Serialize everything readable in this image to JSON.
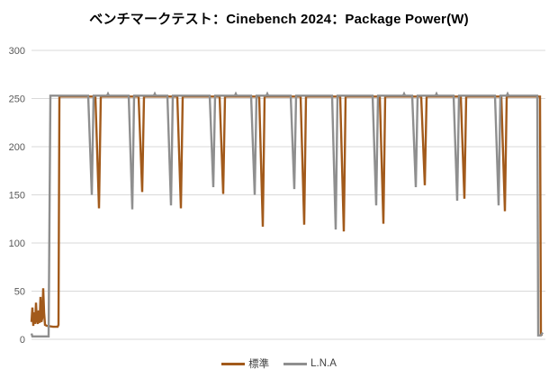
{
  "chart_data": {
    "type": "line",
    "title": "ベンチマークテスト：Cinebench 2024：Package Power(W)",
    "xlabel": "",
    "ylabel": "",
    "ylim": [
      0,
      300
    ],
    "yticks": [
      0,
      50,
      100,
      150,
      200,
      250,
      300
    ],
    "x_range": [
      0,
      571
    ],
    "x_tick_labels_shown": false,
    "grid": true,
    "legend_position": "bottom",
    "plot_note": "Two power-draw traces idle near 0-50W, jump to a ~252W plateau, show 11 periodic V-shaped dips between benchmark runs, then fall back to ~5W at the end",
    "series": [
      {
        "name": "標準",
        "color": "#A25A1B",
        "plateau_w": 252,
        "dip_minima_w": [
          136,
          153,
          136,
          151,
          117,
          119,
          112,
          120,
          160,
          146,
          133
        ],
        "points": [
          [
            0,
            18
          ],
          [
            1,
            33
          ],
          [
            2,
            14
          ],
          [
            3,
            28
          ],
          [
            4,
            16
          ],
          [
            5,
            38
          ],
          [
            6,
            20
          ],
          [
            7,
            16
          ],
          [
            8,
            30
          ],
          [
            9,
            17
          ],
          [
            10,
            44
          ],
          [
            11,
            18
          ],
          [
            12,
            22
          ],
          [
            13,
            53
          ],
          [
            14,
            28
          ],
          [
            15,
            15
          ],
          [
            17,
            14
          ],
          [
            24,
            13
          ],
          [
            29,
            13
          ],
          [
            30,
            15
          ],
          [
            31,
            252
          ],
          [
            71,
            252
          ],
          [
            75,
            136
          ],
          [
            77,
            252
          ],
          [
            119,
            252
          ],
          [
            123,
            153
          ],
          [
            125,
            252
          ],
          [
            162,
            252
          ],
          [
            166,
            136
          ],
          [
            168,
            252
          ],
          [
            209,
            252
          ],
          [
            213,
            151
          ],
          [
            215,
            252
          ],
          [
            253,
            252
          ],
          [
            257,
            117
          ],
          [
            259,
            252
          ],
          [
            299,
            252
          ],
          [
            303,
            119
          ],
          [
            305,
            252
          ],
          [
            343,
            252
          ],
          [
            347,
            112
          ],
          [
            349,
            252
          ],
          [
            387,
            252
          ],
          [
            391,
            120
          ],
          [
            393,
            252
          ],
          [
            433,
            252
          ],
          [
            437,
            160
          ],
          [
            439,
            252
          ],
          [
            477,
            252
          ],
          [
            481,
            146
          ],
          [
            483,
            252
          ],
          [
            522,
            252
          ],
          [
            526,
            133
          ],
          [
            528,
            252
          ],
          [
            565,
            252
          ],
          [
            566,
            5
          ],
          [
            568,
            5
          ]
        ]
      },
      {
        "name": "L.N.A",
        "color": "#8F8F8F",
        "plateau_w": 253,
        "dip_minima_w": [
          150,
          135,
          139,
          158,
          150,
          156,
          114,
          139,
          158,
          144,
          139
        ],
        "points": [
          [
            0,
            6
          ],
          [
            1,
            3
          ],
          [
            19,
            3
          ],
          [
            21,
            253
          ],
          [
            63,
            253
          ],
          [
            67,
            150
          ],
          [
            69,
            253
          ],
          [
            84,
            253
          ],
          [
            85,
            255
          ],
          [
            86,
            253
          ],
          [
            108,
            253
          ],
          [
            112,
            135
          ],
          [
            114,
            253
          ],
          [
            136,
            253
          ],
          [
            137,
            255
          ],
          [
            138,
            253
          ],
          [
            151,
            253
          ],
          [
            155,
            139
          ],
          [
            157,
            253
          ],
          [
            198,
            253
          ],
          [
            202,
            158
          ],
          [
            204,
            253
          ],
          [
            226,
            253
          ],
          [
            227,
            255
          ],
          [
            228,
            253
          ],
          [
            244,
            253
          ],
          [
            248,
            150
          ],
          [
            250,
            253
          ],
          [
            261,
            253
          ],
          [
            262,
            255
          ],
          [
            263,
            253
          ],
          [
            288,
            253
          ],
          [
            292,
            156
          ],
          [
            294,
            253
          ],
          [
            334,
            253
          ],
          [
            338,
            114
          ],
          [
            340,
            253
          ],
          [
            379,
            253
          ],
          [
            383,
            139
          ],
          [
            385,
            253
          ],
          [
            413,
            253
          ],
          [
            414,
            255
          ],
          [
            415,
            253
          ],
          [
            423,
            253
          ],
          [
            427,
            158
          ],
          [
            429,
            253
          ],
          [
            449,
            253
          ],
          [
            450,
            255
          ],
          [
            451,
            253
          ],
          [
            469,
            253
          ],
          [
            473,
            144
          ],
          [
            475,
            253
          ],
          [
            515,
            253
          ],
          [
            519,
            139
          ],
          [
            521,
            253
          ],
          [
            528,
            253
          ],
          [
            529,
            255
          ],
          [
            530,
            253
          ],
          [
            562,
            253
          ],
          [
            563,
            4
          ],
          [
            566,
            4
          ],
          [
            568,
            7
          ]
        ]
      }
    ],
    "style": {
      "gridline_color": "#D9D9D9",
      "tick_label_color": "#595959",
      "background": "#FFFFFF",
      "line_width": 2.4
    }
  }
}
